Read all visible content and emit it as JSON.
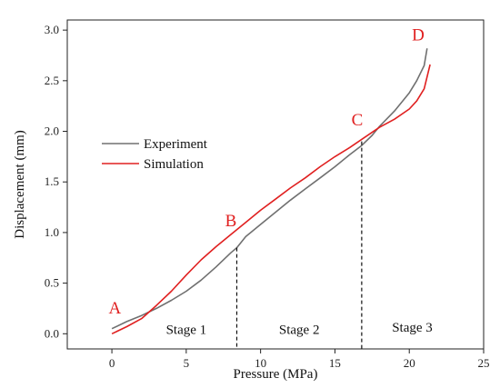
{
  "chart_data": {
    "type": "line",
    "xlabel": "Pressure (MPa)",
    "ylabel": "Displacement (mm)",
    "xlim": [
      -3,
      25
    ],
    "ylim": [
      -0.15,
      3.1
    ],
    "x_ticks": [
      0,
      5,
      10,
      15,
      20,
      25
    ],
    "y_ticks": [
      0.0,
      0.5,
      1.0,
      1.5,
      2.0,
      2.5,
      3.0
    ],
    "x_tick_labels": [
      "0",
      "5",
      "10",
      "15",
      "20",
      "25"
    ],
    "y_tick_labels": [
      "0.0",
      "0.5",
      "1.0",
      "1.5",
      "2.0",
      "2.5",
      "3.0"
    ],
    "grid": false,
    "legend_position": "upper-left",
    "series": [
      {
        "name": "Experiment",
        "color": "#707070",
        "x": [
          0,
          1,
          2,
          3,
          4,
          5,
          6,
          7,
          8,
          8.4,
          9,
          10,
          11,
          12,
          13,
          14,
          15,
          16,
          16.8,
          17.5,
          18,
          19,
          20,
          20.5,
          21,
          21.2
        ],
        "y": [
          0.05,
          0.12,
          0.18,
          0.25,
          0.33,
          0.42,
          0.53,
          0.66,
          0.8,
          0.85,
          0.96,
          1.08,
          1.2,
          1.32,
          1.43,
          1.54,
          1.65,
          1.77,
          1.86,
          1.96,
          2.05,
          2.2,
          2.38,
          2.5,
          2.65,
          2.82
        ]
      },
      {
        "name": "Simulation",
        "color": "#e02020",
        "x": [
          0,
          1,
          2,
          3,
          4,
          5,
          6,
          7,
          8,
          9,
          10,
          11,
          12,
          13,
          14,
          15,
          16,
          17,
          18,
          19,
          20,
          20.5,
          21,
          21.4
        ],
        "y": [
          0.0,
          0.07,
          0.15,
          0.28,
          0.42,
          0.58,
          0.73,
          0.86,
          0.98,
          1.1,
          1.22,
          1.33,
          1.44,
          1.54,
          1.65,
          1.75,
          1.84,
          1.94,
          2.04,
          2.12,
          2.22,
          2.3,
          2.42,
          2.66
        ]
      }
    ],
    "stage_boundaries": [
      {
        "x": 8.4,
        "y_top": 0.85
      },
      {
        "x": 16.8,
        "y_top": 1.9
      }
    ],
    "stage_labels": [
      {
        "text": "Stage 1",
        "x": 5,
        "y": 0.0
      },
      {
        "text": "Stage 2",
        "x": 12.6,
        "y": 0.0
      },
      {
        "text": "Stage 3",
        "x": 20.2,
        "y": 0.02
      }
    ],
    "point_labels": [
      {
        "text": "A",
        "x": 0.2,
        "y": 0.2,
        "color": "#e02020"
      },
      {
        "text": "B",
        "x": 8,
        "y": 1.06,
        "color": "#e02020"
      },
      {
        "text": "C",
        "x": 16.5,
        "y": 2.06,
        "color": "#e02020"
      },
      {
        "text": "D",
        "x": 20.6,
        "y": 2.9,
        "color": "#e02020"
      }
    ]
  }
}
